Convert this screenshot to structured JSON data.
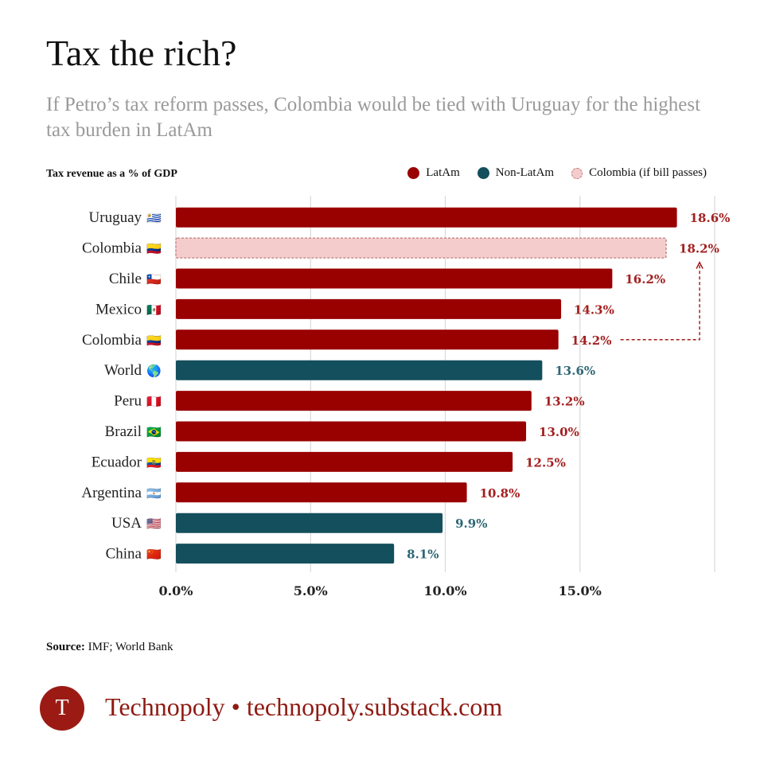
{
  "header": {
    "title": "Tax the rich?",
    "subtitle": "If Petro’s tax reform passes, Colombia would be tied with Uruguay for the highest tax burden in LatAm"
  },
  "legend": {
    "items": [
      {
        "key": "latam",
        "label": "LatAm"
      },
      {
        "key": "nonlatam",
        "label": "Non-LatAm"
      },
      {
        "key": "colombia",
        "label": "Colombia (if bill passes)"
      }
    ]
  },
  "colors": {
    "latam": "#990000",
    "nonlatam": "#134f5c",
    "colombia_fill": "#f4cccc",
    "colombia_border": "#c27b7b",
    "grid": "#d9d9d9",
    "brand": "#8e1a12"
  },
  "chart_data": {
    "type": "bar",
    "orientation": "horizontal",
    "ylabel": "Tax revenue as a % of GDP",
    "xlim": [
      0,
      20
    ],
    "xticks": [
      0,
      5,
      10,
      15,
      20
    ],
    "xtick_labels": [
      "0.0%",
      "5.0%",
      "10.0%",
      "15.0%",
      ""
    ],
    "grid": true,
    "legend_position": "top-right",
    "categories": [
      {
        "label": "Uruguay",
        "flag": "🇺🇾",
        "value": 18.6,
        "group": "latam",
        "value_label": "18.6%"
      },
      {
        "label": "Colombia",
        "flag": "🇨🇴",
        "value": 18.2,
        "group": "colombia",
        "value_label": "18.2%"
      },
      {
        "label": "Chile",
        "flag": "🇨🇱",
        "value": 16.2,
        "group": "latam",
        "value_label": "16.2%"
      },
      {
        "label": "Mexico",
        "flag": "🇲🇽",
        "value": 14.3,
        "group": "latam",
        "value_label": "14.3%"
      },
      {
        "label": "Colombia",
        "flag": "🇨🇴",
        "value": 14.2,
        "group": "latam",
        "value_label": "14.2%"
      },
      {
        "label": "World",
        "flag": "🌎",
        "value": 13.6,
        "group": "nonlatam",
        "value_label": "13.6%"
      },
      {
        "label": "Peru",
        "flag": "🇵🇪",
        "value": 13.2,
        "group": "latam",
        "value_label": "13.2%"
      },
      {
        "label": "Brazil",
        "flag": "🇧🇷",
        "value": 13.0,
        "group": "latam",
        "value_label": "13.0%"
      },
      {
        "label": "Ecuador",
        "flag": "🇪🇨",
        "value": 12.5,
        "group": "latam",
        "value_label": "12.5%"
      },
      {
        "label": "Argentina",
        "flag": "🇦🇷",
        "value": 10.8,
        "group": "latam",
        "value_label": "10.8%"
      },
      {
        "label": "USA",
        "flag": "🇺🇸",
        "value": 9.9,
        "group": "nonlatam",
        "value_label": "9.9%"
      },
      {
        "label": "China",
        "flag": "🇨🇳",
        "value": 8.1,
        "group": "nonlatam",
        "value_label": "8.1%"
      }
    ],
    "annotation": {
      "type": "dashed-arrow",
      "from_index": 4,
      "to_index": 1
    }
  },
  "source": {
    "label": "Source:",
    "text": "IMF; World Bank"
  },
  "footer": {
    "logo_letter": "T",
    "brand": "Technopoly • technopoly.substack.com"
  }
}
